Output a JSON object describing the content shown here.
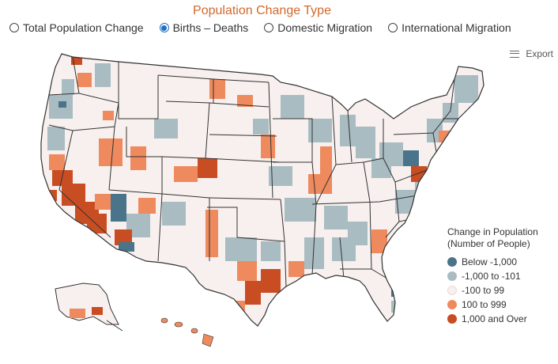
{
  "header": {
    "title": "Population Change Type"
  },
  "radio_options": [
    {
      "label": "Total Population Change",
      "selected": false
    },
    {
      "label": "Births – Deaths",
      "selected": true
    },
    {
      "label": "Domestic Migration",
      "selected": false
    },
    {
      "label": "International Migration",
      "selected": false
    }
  ],
  "export": {
    "label": "Export",
    "icon": "hamburger-menu-icon"
  },
  "legend": {
    "title_line1": "Change in Population",
    "title_line2": "(Number of People)",
    "items": [
      {
        "label": "Below -1,000",
        "color": "#4a7489"
      },
      {
        "label": "-1,000 to -101",
        "color": "#a9bcc2"
      },
      {
        "label": "-100 to 99",
        "color": "#f7f0ee"
      },
      {
        "label": "100 to 999",
        "color": "#ee8a5e"
      },
      {
        "label": "1,000 and Over",
        "color": "#c94d22"
      }
    ]
  },
  "colors": {
    "title": "#d2692c",
    "radio_selected": "#1f6fc5",
    "state_border": "#333333",
    "county_border": "#ffffff"
  },
  "map": {
    "subject": "U.S. counties choropleth"
  }
}
